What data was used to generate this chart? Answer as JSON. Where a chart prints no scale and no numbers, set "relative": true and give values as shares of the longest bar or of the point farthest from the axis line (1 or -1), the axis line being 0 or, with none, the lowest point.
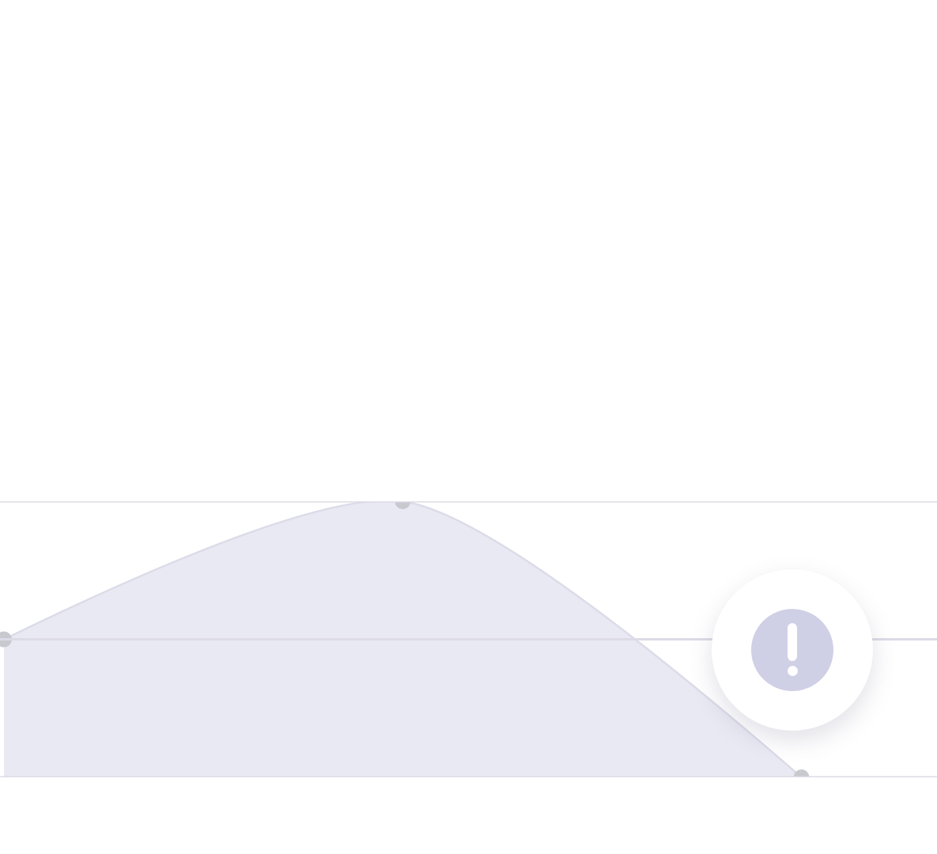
{
  "chart_data": {
    "type": "area",
    "relative": true,
    "categories": [
      null,
      null,
      null
    ],
    "series": [
      {
        "color": "#dcdbe8",
        "values": [
          0.5,
          1,
          0
        ]
      }
    ],
    "ref_lines": [
      {
        "axis": "y",
        "value": 0,
        "color": "#dddbe6"
      },
      {
        "axis": "y",
        "value": 0.5,
        "color": "#dddbe6"
      },
      {
        "axis": "y",
        "value": 1,
        "color": "#dddbe6"
      }
    ],
    "marker": "circle",
    "legend": false
  }
}
